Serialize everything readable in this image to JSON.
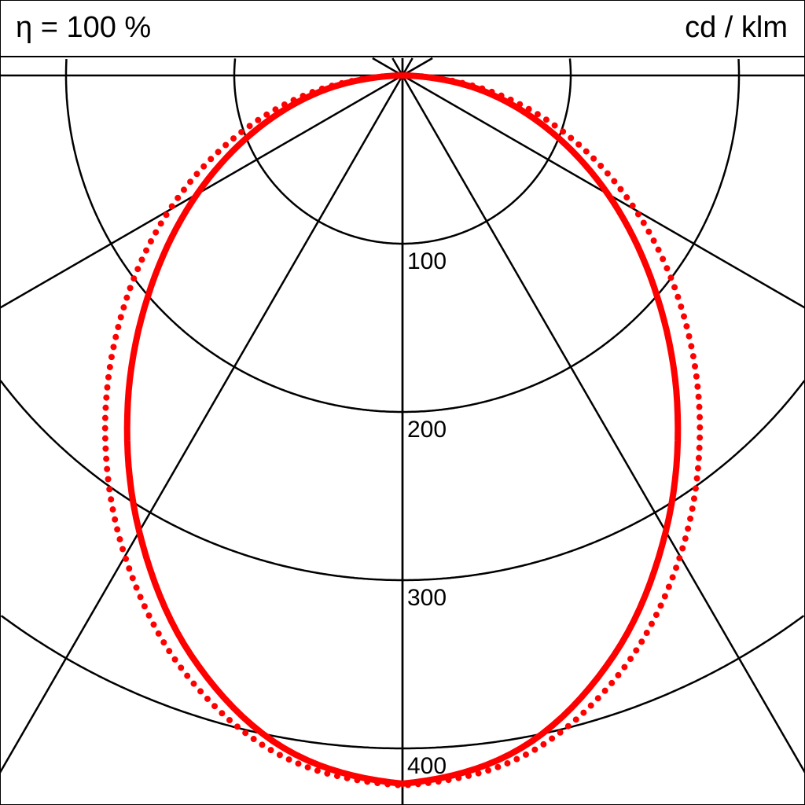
{
  "header": {
    "efficiency": "η = 100 %",
    "unit": "cd / klm"
  },
  "chart_data": {
    "type": "polar",
    "title": "",
    "radial_ticks": [
      100,
      200,
      300,
      400
    ],
    "radial_tick_labels": [
      "100",
      "200",
      "300",
      "400"
    ],
    "angle_lines_deg": [
      0,
      30,
      60,
      90,
      120,
      150,
      180
    ],
    "angles_deg": [
      0,
      10,
      20,
      30,
      40,
      50,
      60,
      70,
      80,
      90
    ],
    "series": [
      {
        "style": "solid",
        "color": "#ff0000",
        "values": [
          421,
          406,
          367,
          313,
          254,
          195,
          141,
          91,
          45,
          0
        ]
      },
      {
        "style": "dotted",
        "color": "#ff0000",
        "values": [
          422,
          411,
          378,
          330,
          275,
          217,
          160,
          105,
          52,
          0
        ]
      }
    ],
    "grid": true
  }
}
